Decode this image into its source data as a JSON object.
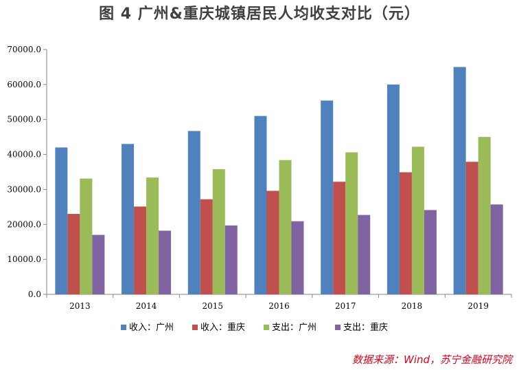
{
  "title": "图 4   广州&重庆城镇居民人均收支对比（元）",
  "source_note": "数据来源：Wind，苏宁金融研究院",
  "chart_data": {
    "type": "bar",
    "title": "图 4   广州&重庆城镇居民人均收支对比（元）",
    "xlabel": "",
    "ylabel": "",
    "categories": [
      "2013",
      "2014",
      "2015",
      "2016",
      "2017",
      "2018",
      "2019"
    ],
    "ylim": [
      0,
      70000
    ],
    "yticks": [
      "0.0",
      "10000.0",
      "20000.0",
      "30000.0",
      "40000.0",
      "50000.0",
      "60000.0",
      "70000.0"
    ],
    "grid": false,
    "legend_position": "bottom",
    "series": [
      {
        "name": "收入：广州",
        "color": "#4F81BD",
        "values": [
          42000,
          43000,
          46700,
          51000,
          55400,
          60000,
          65000
        ]
      },
      {
        "name": "收入：重庆",
        "color": "#C0504D",
        "values": [
          23000,
          25100,
          27200,
          29600,
          32200,
          34900,
          37900
        ]
      },
      {
        "name": "支出：广州",
        "color": "#9BBB59",
        "values": [
          33100,
          33400,
          35800,
          38400,
          40600,
          42200,
          45000
        ]
      },
      {
        "name": "支出：重庆",
        "color": "#8064A2",
        "values": [
          17000,
          18200,
          19700,
          20900,
          22700,
          24100,
          25700
        ]
      }
    ]
  }
}
